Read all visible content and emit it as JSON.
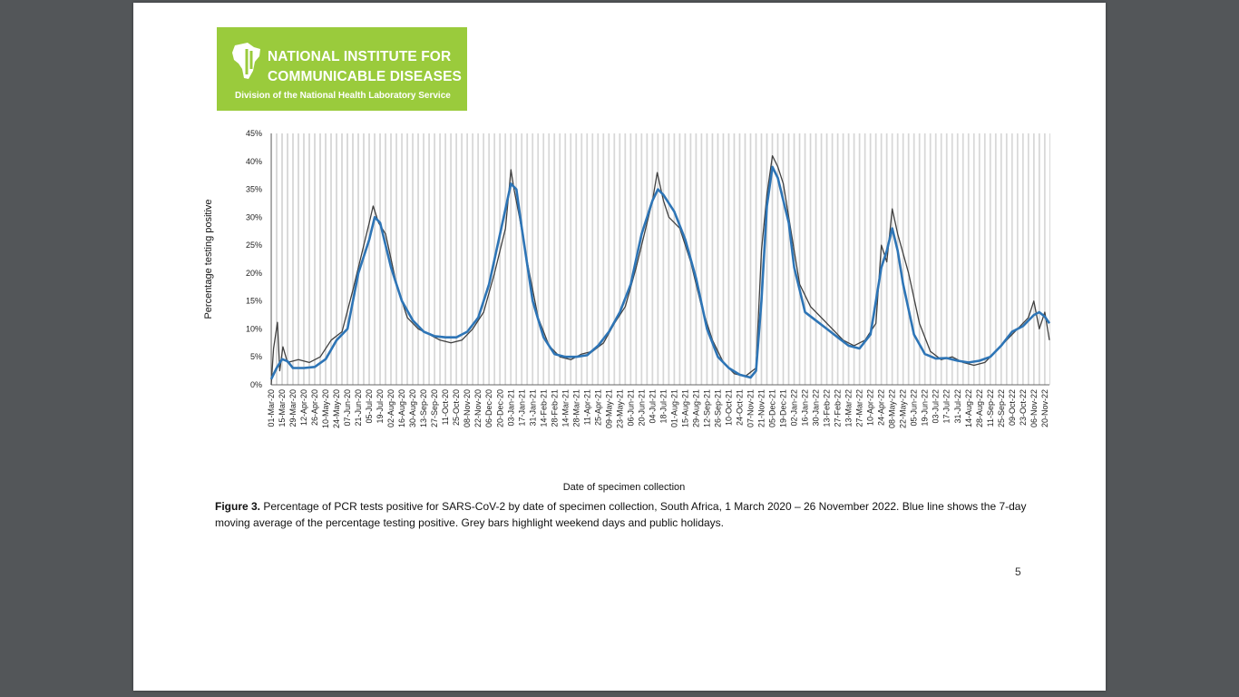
{
  "logo": {
    "line1": "NATIONAL INSTITUTE FOR",
    "line2": "COMMUNICABLE DISEASES",
    "subtitle": "Division of the National Health Laboratory Service"
  },
  "caption": {
    "label": "Figure 3.",
    "text": " Percentage of PCR tests positive for SARS-CoV-2 by date of specimen collection, South Africa, 1 March 2020 – 26 November 2022. Blue line shows the 7-day moving average of the percentage testing positive. Grey bars highlight weekend days and public holidays."
  },
  "page_number": "5",
  "chart_data": {
    "type": "line",
    "xlabel": "Date of specimen collection",
    "ylabel": "Percentage testing positive",
    "ylim": [
      0,
      45
    ],
    "y_ticks": [
      "0%",
      "5%",
      "10%",
      "15%",
      "20%",
      "25%",
      "30%",
      "35%",
      "40%",
      "45%"
    ],
    "x_ticks": [
      "01-Mar-20",
      "15-Mar-20",
      "29-Mar-20",
      "12-Apr-20",
      "26-Apr-20",
      "10-May-20",
      "24-May-20",
      "07-Jun-20",
      "21-Jun-20",
      "05-Jul-20",
      "19-Jul-20",
      "02-Aug-20",
      "16-Aug-20",
      "30-Aug-20",
      "13-Sep-20",
      "27-Sep-20",
      "11-Oct-20",
      "25-Oct-20",
      "08-Nov-20",
      "22-Nov-20",
      "06-Dec-20",
      "20-Dec-20",
      "03-Jan-21",
      "17-Jan-21",
      "31-Jan-21",
      "14-Feb-21",
      "28-Feb-21",
      "14-Mar-21",
      "28-Mar-21",
      "11-Apr-21",
      "25-Apr-21",
      "09-May-21",
      "23-May-21",
      "06-Jun-21",
      "20-Jun-21",
      "04-Jul-21",
      "18-Jul-21",
      "01-Aug-21",
      "15-Aug-21",
      "29-Aug-21",
      "12-Sep-21",
      "26-Sep-21",
      "10-Oct-21",
      "24-Oct-21",
      "07-Nov-21",
      "21-Nov-21",
      "05-Dec-21",
      "19-Dec-21",
      "02-Jan-22",
      "16-Jan-22",
      "30-Jan-22",
      "13-Feb-22",
      "27-Feb-22",
      "13-Mar-22",
      "27-Mar-22",
      "10-Apr-22",
      "24-Apr-22",
      "08-May-22",
      "22-May-22",
      "05-Jun-22",
      "19-Jun-22",
      "03-Jul-22",
      "17-Jul-22",
      "31-Jul-22",
      "14-Aug-22",
      "28-Aug-22",
      "11-Sep-22",
      "25-Sep-22",
      "09-Oct-22",
      "23-Oct-22",
      "06-Nov-22",
      "20-Nov-22"
    ],
    "grid": "weekend and public-holiday days shaded as grey vertical bars",
    "series": [
      {
        "role": "7-day moving average",
        "color": "#2e75b6",
        "x": [
          "2020-03-01",
          "2020-03-08",
          "2020-03-15",
          "2020-03-22",
          "2020-03-29",
          "2020-04-12",
          "2020-04-26",
          "2020-05-10",
          "2020-05-24",
          "2020-06-07",
          "2020-06-21",
          "2020-07-05",
          "2020-07-12",
          "2020-07-19",
          "2020-08-02",
          "2020-08-16",
          "2020-08-30",
          "2020-09-13",
          "2020-09-27",
          "2020-10-11",
          "2020-10-25",
          "2020-11-08",
          "2020-11-22",
          "2020-12-06",
          "2020-12-20",
          "2021-01-03",
          "2021-01-10",
          "2021-01-17",
          "2021-01-31",
          "2021-02-14",
          "2021-02-28",
          "2021-03-14",
          "2021-03-28",
          "2021-04-11",
          "2021-04-25",
          "2021-05-09",
          "2021-05-23",
          "2021-06-06",
          "2021-06-20",
          "2021-07-04",
          "2021-07-11",
          "2021-07-18",
          "2021-08-01",
          "2021-08-15",
          "2021-08-29",
          "2021-09-12",
          "2021-09-26",
          "2021-10-10",
          "2021-10-24",
          "2021-11-07",
          "2021-11-14",
          "2021-11-21",
          "2021-11-28",
          "2021-12-05",
          "2021-12-12",
          "2021-12-19",
          "2021-12-26",
          "2022-01-02",
          "2022-01-16",
          "2022-01-30",
          "2022-02-13",
          "2022-02-27",
          "2022-03-13",
          "2022-03-27",
          "2022-04-10",
          "2022-04-24",
          "2022-05-01",
          "2022-05-08",
          "2022-05-15",
          "2022-05-22",
          "2022-06-05",
          "2022-06-19",
          "2022-07-03",
          "2022-07-17",
          "2022-07-31",
          "2022-08-14",
          "2022-08-28",
          "2022-09-11",
          "2022-09-25",
          "2022-10-09",
          "2022-10-23",
          "2022-11-06",
          "2022-11-13",
          "2022-11-20",
          "2022-11-26"
        ],
        "values": [
          1,
          3,
          4.6,
          4.2,
          3,
          3,
          3.2,
          4.6,
          8,
          10,
          20,
          26,
          30,
          29,
          21,
          15,
          11.5,
          9.5,
          8.7,
          8.5,
          8.5,
          9.5,
          12,
          18,
          27,
          36,
          35,
          28,
          15,
          8.5,
          5.5,
          5,
          5,
          5.3,
          7,
          9.5,
          13,
          18,
          27,
          33,
          35,
          34,
          31,
          26,
          19,
          10,
          5,
          3,
          1.8,
          1.3,
          2.5,
          15,
          32,
          39,
          37,
          33,
          29,
          21,
          13,
          11.5,
          10,
          8.5,
          7,
          6.5,
          9,
          21,
          24,
          28,
          24,
          18,
          9,
          5.5,
          4.7,
          4.8,
          4.3,
          4,
          4.3,
          5,
          7,
          9.5,
          10.5,
          12.5,
          13,
          12.2,
          11
        ]
      },
      {
        "role": "daily percentage testing positive",
        "color": "#404040",
        "x": [
          "2020-03-01",
          "2020-03-04",
          "2020-03-09",
          "2020-03-12",
          "2020-03-16",
          "2020-03-22",
          "2020-04-05",
          "2020-04-19",
          "2020-05-03",
          "2020-05-17",
          "2020-05-31",
          "2020-06-14",
          "2020-06-28",
          "2020-07-05",
          "2020-07-10",
          "2020-07-17",
          "2020-07-26",
          "2020-08-09",
          "2020-08-23",
          "2020-09-06",
          "2020-09-20",
          "2020-10-04",
          "2020-10-18",
          "2020-11-01",
          "2020-11-15",
          "2020-11-29",
          "2020-12-13",
          "2020-12-27",
          "2021-01-03",
          "2021-01-07",
          "2021-01-14",
          "2021-01-24",
          "2021-02-07",
          "2021-02-21",
          "2021-03-07",
          "2021-03-21",
          "2021-04-04",
          "2021-04-18",
          "2021-05-02",
          "2021-05-16",
          "2021-05-30",
          "2021-06-13",
          "2021-06-27",
          "2021-07-04",
          "2021-07-10",
          "2021-07-18",
          "2021-07-25",
          "2021-08-08",
          "2021-08-22",
          "2021-09-05",
          "2021-09-19",
          "2021-10-03",
          "2021-10-17",
          "2021-10-31",
          "2021-11-14",
          "2021-11-21",
          "2021-11-28",
          "2021-12-05",
          "2021-12-12",
          "2021-12-19",
          "2021-12-26",
          "2022-01-09",
          "2022-01-23",
          "2022-02-06",
          "2022-02-20",
          "2022-03-06",
          "2022-03-20",
          "2022-04-03",
          "2022-04-17",
          "2022-04-24",
          "2022-05-01",
          "2022-05-08",
          "2022-05-15",
          "2022-05-29",
          "2022-06-12",
          "2022-06-26",
          "2022-07-10",
          "2022-07-24",
          "2022-08-07",
          "2022-08-21",
          "2022-09-04",
          "2022-09-18",
          "2022-10-02",
          "2022-10-16",
          "2022-10-30",
          "2022-11-06",
          "2022-11-13",
          "2022-11-20",
          "2022-11-26"
        ],
        "values": [
          0,
          6.5,
          11.2,
          2.5,
          6.8,
          4,
          4.5,
          4,
          5,
          8,
          9.5,
          17,
          25,
          29,
          32,
          29,
          27,
          18,
          12,
          10,
          9,
          8,
          7.5,
          8,
          10,
          13,
          20,
          28,
          38.5,
          35,
          30,
          22,
          12,
          7,
          5,
          4.5,
          5.5,
          6,
          7.5,
          11,
          14,
          21,
          29,
          33,
          38,
          33,
          30,
          28,
          22,
          14,
          8,
          4,
          2,
          1.5,
          3,
          24,
          34,
          41,
          39,
          36,
          30,
          18,
          14,
          12,
          10,
          8,
          7,
          8,
          11,
          25,
          22,
          31.5,
          27,
          20,
          11,
          6,
          4.5,
          5,
          4,
          3.5,
          4,
          6,
          8,
          10,
          12,
          15,
          10,
          13,
          8
        ]
      }
    ]
  }
}
